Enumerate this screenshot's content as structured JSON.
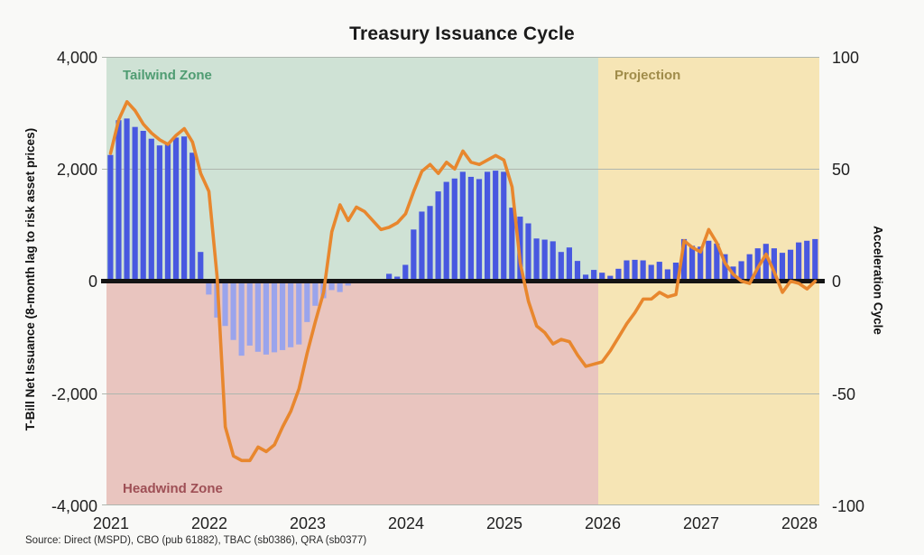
{
  "title": "Treasury Issuance Cycle",
  "source": "Source: Direct (MSPD), CBO (pub 61882), TBAC (sb0386), QRA (sb0377)",
  "left_axis": {
    "title": "T-Bill Net Issuance (8-month lag to risk asset prices)",
    "ticks": [
      "4,000",
      "2,000",
      "0",
      "-2,000",
      "-4,000"
    ]
  },
  "right_axis": {
    "title": "Acceleration Cycle",
    "ticks": [
      "100",
      "50",
      "0",
      "-50",
      "-100"
    ]
  },
  "x_axis": {
    "ticks": [
      "2021",
      "2022",
      "2023",
      "2024",
      "2025",
      "2026",
      "2027",
      "2028"
    ]
  },
  "zones": {
    "tailwind": {
      "label": "Tailwind Zone",
      "fill": "#cfe2d5",
      "text_color": "#4f9c72"
    },
    "headwind": {
      "label": "Headwind Zone",
      "fill": "#e9c5bf",
      "text_color": "#9e4f55"
    },
    "projection": {
      "label": "Projection",
      "fill": "#f6e5b5",
      "text_color": "#a08c4a"
    }
  },
  "colors": {
    "bar_positive": "#4858e0",
    "bar_negative": "#9aa4ec",
    "line": "#e8872e",
    "zero_line": "#141414"
  },
  "chart_data": {
    "type": "bar",
    "x_start": "2021-01",
    "x_frequency": "monthly",
    "x_year_ticks": [
      2021,
      2022,
      2023,
      2024,
      2025,
      2026,
      2027,
      2028
    ],
    "left_ylim": [
      -4000,
      4000
    ],
    "right_ylim": [
      -100,
      100
    ],
    "projection_start": "2026-01",
    "grid_values_left": [
      2000,
      -2000
    ],
    "series": [
      {
        "name": "T-Bill Net Issuance",
        "type": "bar",
        "axis": "left",
        "values": [
          2250,
          2870,
          2900,
          2750,
          2680,
          2540,
          2420,
          2450,
          2560,
          2580,
          2290,
          520,
          -240,
          -650,
          -800,
          -1050,
          -1330,
          -1150,
          -1260,
          -1310,
          -1270,
          -1230,
          -1180,
          -1130,
          -730,
          -440,
          -305,
          -160,
          -195,
          -80,
          -40,
          0,
          0,
          0,
          130,
          80,
          290,
          920,
          1240,
          1340,
          1600,
          1770,
          1830,
          1950,
          1860,
          1820,
          1950,
          1970,
          1950,
          1310,
          1150,
          1030,
          760,
          740,
          710,
          520,
          600,
          360,
          115,
          200,
          150,
          95,
          220,
          370,
          380,
          370,
          290,
          345,
          210,
          330,
          750,
          630,
          615,
          720,
          670,
          480,
          260,
          355,
          480,
          585,
          665,
          585,
          505,
          560,
          690,
          720,
          750
        ]
      },
      {
        "name": "Acceleration Cycle",
        "type": "line",
        "axis": "right",
        "values": [
          57,
          72,
          80,
          76,
          70,
          66,
          63,
          61,
          65,
          68,
          62,
          48,
          40,
          2,
          -65,
          -78,
          -80,
          -80,
          -74,
          -76,
          -73,
          -65,
          -58,
          -48,
          -32,
          -18,
          -5,
          22,
          34,
          27,
          33,
          31,
          27,
          23,
          24,
          26,
          30,
          40,
          49,
          52,
          48,
          53,
          50,
          58,
          53,
          52,
          54,
          56,
          54,
          42,
          8,
          -9,
          -20,
          -23,
          -28,
          -26,
          -27,
          -33,
          -38,
          -37,
          -36,
          -31,
          -25,
          -19,
          -14,
          -8,
          -8,
          -5,
          -7,
          -6,
          18,
          15,
          13,
          23,
          17,
          8,
          3,
          0,
          -1,
          6,
          12,
          4,
          -5,
          0,
          -1,
          -3.5,
          0
        ]
      }
    ]
  }
}
